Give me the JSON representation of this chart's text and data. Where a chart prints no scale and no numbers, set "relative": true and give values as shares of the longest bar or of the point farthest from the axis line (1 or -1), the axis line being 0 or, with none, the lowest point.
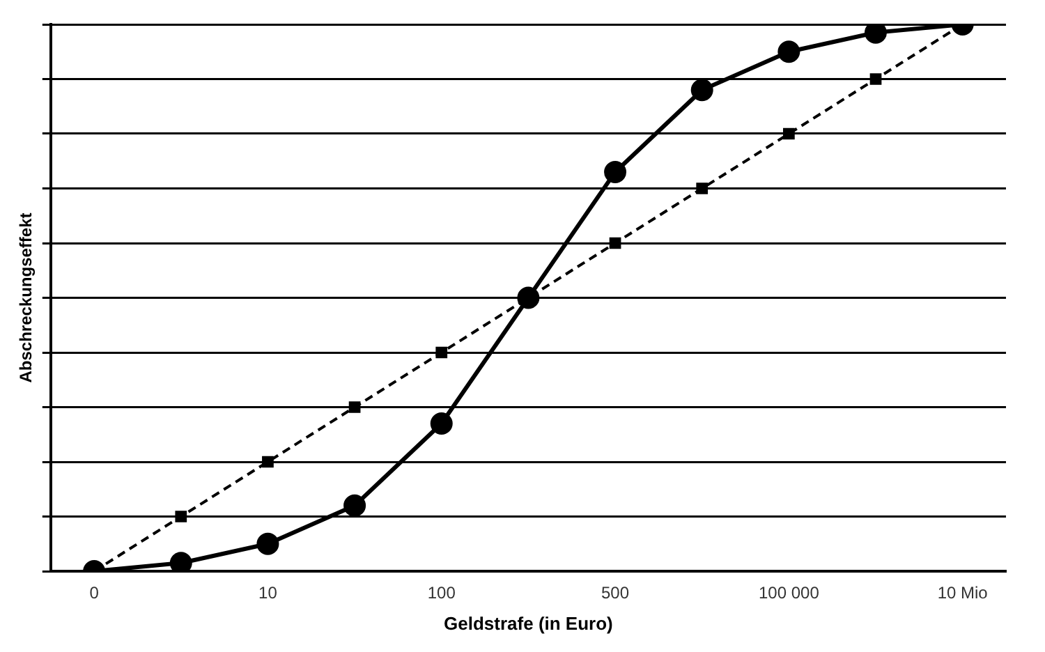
{
  "chart_data": {
    "type": "line",
    "xlabel": "Geldstrafe (in Euro)",
    "ylabel": "Abschreckungseffekt",
    "relative": true,
    "grid": "y",
    "legend": false,
    "categories": [
      "0",
      null,
      "10",
      null,
      "100",
      null,
      "500",
      null,
      "100 000",
      null,
      "10 Mio"
    ],
    "series": [
      {
        "color": "#000000",
        "marker": "circle",
        "line_style": "solid",
        "values": [
          0,
          0.015,
          0.05,
          0.12,
          0.27,
          0.5,
          0.73,
          0.88,
          0.95,
          0.985,
          1
        ]
      },
      {
        "color": "#000000",
        "marker": "square",
        "line_style": "dashed",
        "values": [
          0,
          0.1,
          0.2,
          0.3,
          0.4,
          0.5,
          0.6,
          0.7,
          0.8,
          0.9,
          1
        ]
      }
    ]
  }
}
